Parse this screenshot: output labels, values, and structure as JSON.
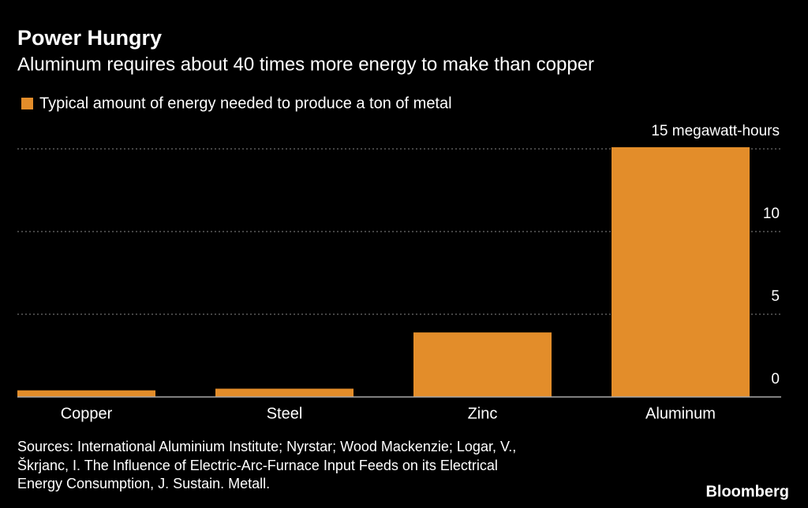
{
  "chart_data": {
    "type": "bar",
    "title": "Power Hungry",
    "subtitle": "Aluminum requires about 40 times more energy to make than copper",
    "series": [
      {
        "name": "Typical amount of energy needed to produce a ton of metal",
        "color": "#e38d2a",
        "values": [
          0.4,
          0.5,
          3.9,
          15.1
        ]
      }
    ],
    "categories": [
      "Copper",
      "Steel",
      "Zinc",
      "Aluminum"
    ],
    "ylim": [
      0,
      15.5
    ],
    "yticks": [
      0,
      5,
      10,
      {
        "value": 15,
        "label": "15 megawatt-hours"
      }
    ],
    "grid": true,
    "source": [
      "Sources: International Aluminium Institute; Nyrstar; Wood Mackenzie; Logar, V.,",
      "Škrjanc, I. The Influence of Electric-Arc-Furnace Input Feeds on its Electrical",
      "Energy Consumption, J. Sustain. Metall."
    ],
    "brand": "Bloomberg"
  }
}
